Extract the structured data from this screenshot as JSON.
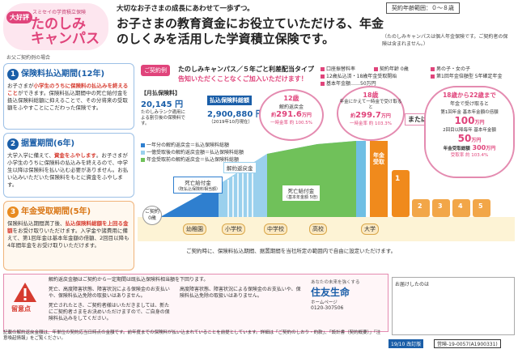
{
  "brand": {
    "badge": "大好評",
    "company_small": "スミセイの学資積立保険",
    "name_line1": "たのしみ",
    "name_line2": "キャンパス"
  },
  "header": {
    "sub": "大切なお子さまの成長にあわせて一歩ずつ。",
    "main": "お子さまの教育資金にお役立ていただける、年金のしくみを活用した学資積立保険です。",
    "range": "契約年齢範囲：０〜８歳",
    "note": "（たのしみキャンパスは個人年金保険です。ご契約者の保険は含まれません。）"
  },
  "sidebar": {
    "caption": "お父ご契約例の場合",
    "sections": [
      {
        "num": "1",
        "title": "保険料払込期間(12年)",
        "body_a": "お子さまが",
        "hl_a": "小学生のうちに保険料の払込みを終えること",
        "body_b": "ができます。保険料払込期間中の死亡給付金を扱込保険料総額に抑えることで、その分将来の受取額をふやすことにこだわった保険です。"
      },
      {
        "num": "2",
        "title": "据置期間(6年)",
        "body_a": "大学入学に備えて、",
        "hl_a": "資金をふやします",
        "body_b": "。お子さまが小学生のうちに保険料の払込みを終えるので、中学生以降は保険料を払い込む必要がありません。お払い込みいただいた保険料をもとに資金をふやします。"
      },
      {
        "num": "3",
        "title": "年金受取期間(5年)",
        "body_a": "保険料払込期間満了後、",
        "hl_a": "払込保険料総額を上回る金額",
        "body_b": "をお受け取りいただけます。入学金や諸費用に備えて、第1回年金は基本年金額の倍額、2回目以降も4年間年金をお受け取りいただけます。"
      }
    ]
  },
  "plan": {
    "tag": "ご契約例",
    "title": "たのしみキャンパス／５年ごと利差配当タイプ",
    "subtitle": "告知いただくことなくご加入いただけます！",
    "monthly_label": "【月払保険料】",
    "monthly_value": "20,145 円",
    "monthly_note": "たのしみランク適用による割引後の保険料です。",
    "total_label": "払込保険料総額",
    "total_value": "2,900,880 円",
    "total_note": "（2019年10月現在）"
  },
  "legend": [
    {
      "label": "口座振替料率",
      "color": "#e0447b"
    },
    {
      "label": "契約年齢 0歳",
      "color": "#e0447b"
    },
    {
      "label": "男の子・女の子",
      "color": "#e0447b"
    },
    {
      "label": "12歳払込済・18歳年金受取開始",
      "color": "#e0447b"
    },
    {
      "label": "第1回年金倍額型 5年確定年金",
      "color": "#e0447b"
    },
    {
      "label": "基本年金額……50万円",
      "color": "#e0447b"
    }
  ],
  "bubbles": [
    {
      "age": "12歳",
      "label": "解約返戻金",
      "prefix": "約",
      "value": "291.6",
      "unit": "万円",
      "rate": "一時金率 約 100.5%"
    },
    {
      "age": "18歳",
      "label": "年金にかえて一時金で受け取ると",
      "prefix": "約",
      "value": "299.7",
      "unit": "万円",
      "rate": "一時金率 約 103.3%"
    },
    {
      "age": "18歳から22歳まで",
      "label": "年金で受け取ると",
      "value": "300",
      "unit": "万円",
      "rate": "受取率 約 103.4%"
    }
  ],
  "or_label": "または",
  "annuity": {
    "first_label": "第1回年金 基本年金額の倍額",
    "first_value": "100",
    "first_unit": "万円",
    "next_label": "2回目以降毎年 基本年金額",
    "next_value": "50",
    "next_unit": "万円",
    "total_label": "年金受取総額"
  },
  "chart_legend": [
    "一年分の解約返戻金＝払込保険料総額",
    "一億受取後の解約返戻金額＝払込保険料総額",
    "年金受取前の解約返戻金＝払込保険料総額"
  ],
  "labels": {
    "death_benefit_a": "死亡給付金",
    "death_benefit_a_note": "（既払込保険料相当額）",
    "surrender": "解約返戻金",
    "death_benefit_b": "死亡給付金",
    "death_benefit_b_note": "（基本年金額 5倍)",
    "annuity_column": "年金受取",
    "contract_start": "ご契約",
    "start_age": "0歳"
  },
  "stages": [
    "幼稚園",
    "小学校",
    "中学校",
    "高校",
    "大学"
  ],
  "annuity_years": [
    "1",
    "2",
    "3",
    "4",
    "5"
  ],
  "chart_note": "ご契約時に、保険料払込期間、据置期間を当社所定の範囲内で自由に設定いただけます。",
  "warning": {
    "title": "留意点",
    "items": [
      "解約返戻金額はご契約から一定期間は既払込保険料相当額を下回ります。",
      "死亡、高度障害状態、障害状況による保険金のお支払いや、保険料払込免除の取扱いはありません。",
      "死亡されたとき、ご契約者様はいただきましては、新たにご契約者さまをお決めいただけますので、ご自身の保険料払込みをしてください。",
      "高度障害状態、障害状況による保険金のお支払いや、保険料払込免除の取扱いはありません。"
    ]
  },
  "company": {
    "tagline": "あなたの未来を強くする",
    "name": "住友生命",
    "hp": "ホームページ",
    "phone": "0120-307506"
  },
  "memo": {
    "label": "お届けしたのは"
  },
  "footer": "記載の解約返戻金額は、年単位の契約応当日時点の金額です。前年度までの保険料が払い込まれていることを前提としています。詳細は「ご契約のしおり・約款」、「設計書（契約概要）」「注意喚起情報」をご覧ください。",
  "codes": {
    "plan": "19/10 改訂版",
    "code": "営険-19-0057(A1900331)"
  },
  "colors": {
    "accent": "#e0447b",
    "blue": "#1a5ea8",
    "orange": "#f08a1c"
  }
}
